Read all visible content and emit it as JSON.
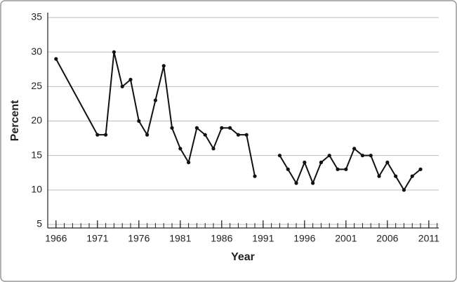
{
  "chart_data": {
    "type": "line",
    "x_label": "Year",
    "y_label": "Percent",
    "x": [
      1966,
      1971,
      1972,
      1973,
      1974,
      1975,
      1976,
      1977,
      1978,
      1979,
      1980,
      1981,
      1982,
      1983,
      1984,
      1985,
      1986,
      1987,
      1988,
      1989,
      1990,
      1991,
      1992,
      1993,
      1994,
      1995,
      1996,
      1997,
      1998,
      1999,
      2000,
      2001,
      2002,
      2003,
      2004,
      2005,
      2006,
      2007,
      2008,
      2009,
      2010
    ],
    "series": [
      {
        "color": "#111111",
        "values": [
          29,
          18,
          18,
          30,
          25,
          26,
          20,
          18,
          23,
          28,
          19,
          16,
          14,
          19,
          18,
          16,
          19,
          19,
          18,
          18,
          12,
          null,
          null,
          15,
          13,
          11,
          14,
          11,
          14,
          15,
          13,
          13,
          16,
          15,
          15,
          12,
          14,
          12,
          10,
          12,
          13
        ]
      }
    ],
    "xlim": [
      1965,
      2012.2
    ],
    "ylim": [
      5,
      35
    ],
    "xticks": [
      1966,
      1971,
      1976,
      1981,
      1986,
      1991,
      1996,
      2001,
      2006,
      2011
    ],
    "yticks": [
      5,
      10,
      15,
      20,
      25,
      30,
      35
    ],
    "grid": true
  }
}
